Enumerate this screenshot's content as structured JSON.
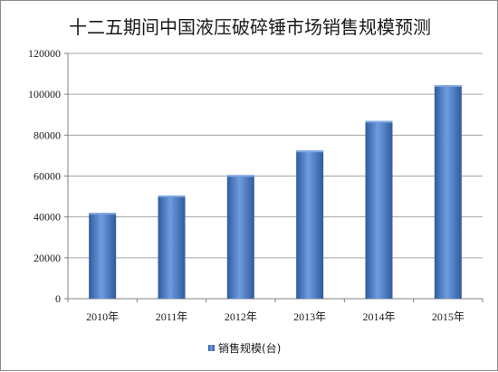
{
  "chart_data": {
    "type": "bar",
    "title": "十二五期间中国液压破碎锤市场销售规模预测",
    "categories": [
      "2010年",
      "2011年",
      "2012年",
      "2013年",
      "2014年",
      "2015年"
    ],
    "series": [
      {
        "name": "销售规模(台)",
        "values": [
          42000,
          50500,
          60500,
          72500,
          87000,
          104500
        ]
      }
    ],
    "ylim": [
      0,
      120000
    ],
    "yticks": [
      "0",
      "20000",
      "40000",
      "60000",
      "80000",
      "100000",
      "120000"
    ],
    "ytick_values": [
      0,
      20000,
      40000,
      60000,
      80000,
      100000,
      120000
    ],
    "grid": true,
    "legend": "bottom-center",
    "colors": {
      "bar": "#4a7ec7",
      "bar_dark": "#2f5c9e",
      "bar_light": "#7fa8e0",
      "grid": "#a6a6a6",
      "axis": "#808080"
    }
  }
}
